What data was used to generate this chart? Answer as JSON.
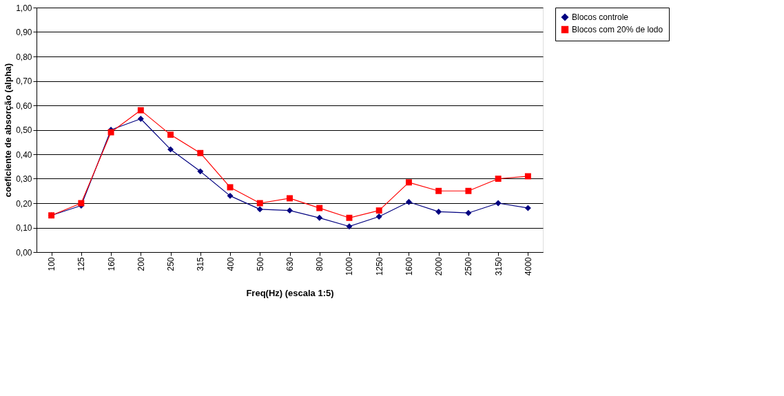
{
  "chart_data": {
    "type": "line",
    "xlabel": "Freq(Hz) (escala 1:5)",
    "ylabel": "coeficiente de absorção (alpha)",
    "categories": [
      "100",
      "125",
      "160",
      "200",
      "250",
      "315",
      "400",
      "500",
      "630",
      "800",
      "1000",
      "1250",
      "1600",
      "2000",
      "2500",
      "3150",
      "4000"
    ],
    "series": [
      {
        "name": "Blocos controle",
        "color": "#000080",
        "marker": "diamond",
        "values": [
          0.15,
          0.19,
          0.5,
          0.545,
          0.42,
          0.33,
          0.23,
          0.175,
          0.17,
          0.14,
          0.105,
          0.145,
          0.205,
          0.165,
          0.16,
          0.2,
          0.18
        ]
      },
      {
        "name": "Blocos com 20% de lodo",
        "color": "#ff0000",
        "marker": "square",
        "values": [
          0.15,
          0.2,
          0.49,
          0.58,
          0.48,
          0.405,
          0.265,
          0.2,
          0.22,
          0.18,
          0.14,
          0.17,
          0.285,
          0.25,
          0.25,
          0.3,
          0.31
        ]
      }
    ],
    "ylim": [
      0,
      1
    ],
    "yticks": [
      {
        "value": 0,
        "label": "0,00"
      },
      {
        "value": 0.1,
        "label": "0,10"
      },
      {
        "value": 0.2,
        "label": "0,20"
      },
      {
        "value": 0.3,
        "label": "0,30"
      },
      {
        "value": 0.4,
        "label": "0,40"
      },
      {
        "value": 0.5,
        "label": "0,50"
      },
      {
        "value": 0.6,
        "label": "0,60"
      },
      {
        "value": 0.7,
        "label": "0,70"
      },
      {
        "value": 0.8,
        "label": "0,80"
      },
      {
        "value": 0.9,
        "label": "0,90"
      },
      {
        "value": 1,
        "label": "1,00"
      }
    ],
    "grid": "y",
    "legend": "right",
    "line_style": "solid"
  }
}
